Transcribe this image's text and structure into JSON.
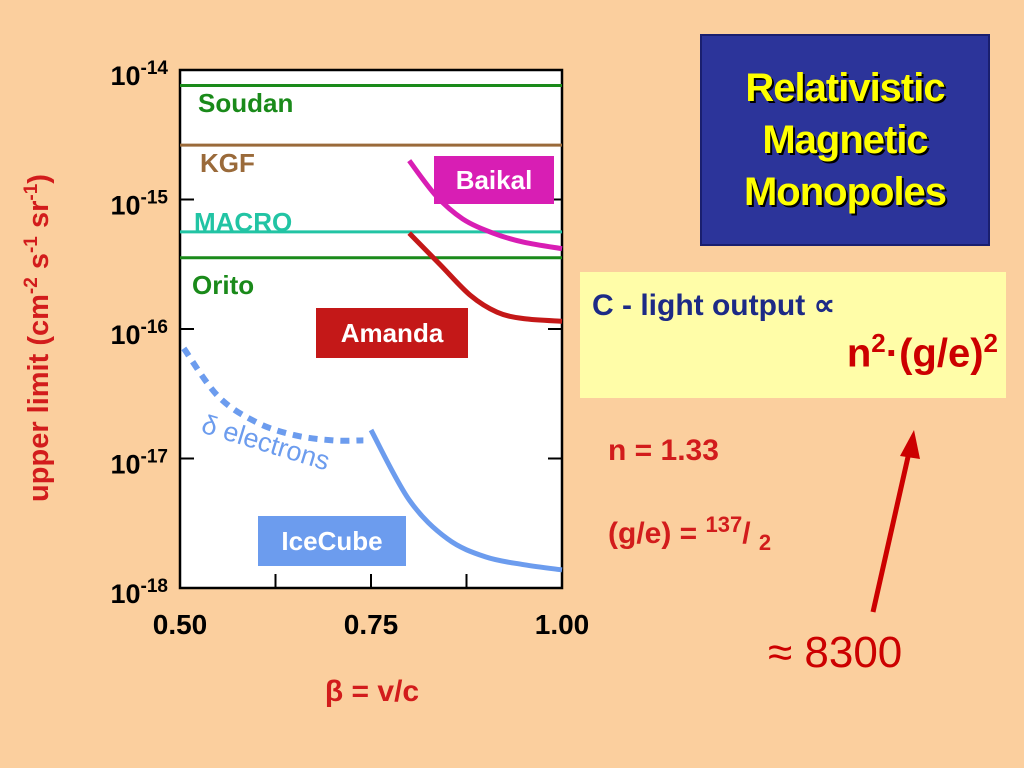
{
  "title": {
    "lines": [
      "Relativistic",
      "Magnetic",
      "Monopoles"
    ]
  },
  "formula": {
    "line1_text": "C - light output",
    "line1_symbol": "∝",
    "n_base": "n",
    "n_exp": "2",
    "dot": "·",
    "ratio": "(g/e)",
    "ratio_exp": "2"
  },
  "notes": {
    "n_value": "n = 1.33",
    "ge_prefix": "(g/e) = ",
    "ge_numerator": "137",
    "ge_slash": "/ ",
    "ge_denominator": "2",
    "approx_symbol": "≈",
    "approx_value": "8300"
  },
  "colors": {
    "soudan": "#1a8a1a",
    "kgf": "#9a6a3a",
    "macro": "#22c4a4",
    "orito": "#1a8a1a",
    "baikal": "#d81eb4",
    "amanda": "#c41818",
    "icecube": "#6c9cee",
    "delta": "#6c9cee",
    "axis_text": "#d21c1c",
    "arrow": "#cc0000"
  },
  "chart_data": {
    "type": "line",
    "xlabel": "β = v/c",
    "ylabel_base": "upper limit (cm",
    "ylabel_exp1": "-2",
    "ylabel_mid1": " s",
    "ylabel_exp2": "-1",
    "ylabel_mid2": " sr",
    "ylabel_exp3": "-1",
    "ylabel_end": ")",
    "xlim": [
      0.5,
      1.0
    ],
    "ylim_log10": [
      -18,
      -14
    ],
    "y_scale": "log",
    "x_ticks": [
      {
        "value": 0.5,
        "label": "0.50"
      },
      {
        "value": 0.75,
        "label": "0.75"
      },
      {
        "value": 1.0,
        "label": "1.00"
      }
    ],
    "x_minor_ticks": [
      0.625,
      0.875
    ],
    "y_ticks": [
      {
        "exp": -14,
        "base": "10",
        "sup": "-14"
      },
      {
        "exp": -15,
        "base": "10",
        "sup": "-15"
      },
      {
        "exp": -16,
        "base": "10",
        "sup": "-16"
      },
      {
        "exp": -17,
        "base": "10",
        "sup": "-17"
      },
      {
        "exp": -18,
        "base": "10",
        "sup": "-18"
      }
    ],
    "horizontal_limits": [
      {
        "name": "Soudan",
        "log10_value": -14.12,
        "color_key": "soudan"
      },
      {
        "name": "KGF",
        "log10_value": -14.58,
        "color_key": "kgf"
      },
      {
        "name": "MACRO",
        "log10_value": -15.25,
        "color_key": "macro"
      },
      {
        "name": "Orito",
        "log10_value": -15.45,
        "color_key": "orito"
      }
    ],
    "series": [
      {
        "name": "Baikal",
        "color_key": "baikal",
        "style": "solid",
        "x": [
          0.8,
          0.835,
          0.87,
          0.91,
          0.95,
          1.0
        ],
        "log10_y": [
          -14.7,
          -14.97,
          -15.15,
          -15.26,
          -15.33,
          -15.38
        ]
      },
      {
        "name": "Amanda",
        "color_key": "amanda",
        "style": "solid",
        "x": [
          0.8,
          0.84,
          0.88,
          0.915,
          0.95,
          1.0
        ],
        "log10_y": [
          -15.26,
          -15.5,
          -15.74,
          -15.87,
          -15.92,
          -15.94
        ]
      },
      {
        "name": "δ electrons",
        "color_key": "delta",
        "style": "dashed",
        "x": [
          0.505,
          0.55,
          0.6,
          0.65,
          0.7,
          0.74
        ],
        "log10_y": [
          -16.15,
          -16.52,
          -16.72,
          -16.82,
          -16.86,
          -16.86
        ]
      },
      {
        "name": "IceCube",
        "color_key": "icecube",
        "style": "solid",
        "x": [
          0.75,
          0.8,
          0.85,
          0.9,
          0.95,
          1.0
        ],
        "log10_y": [
          -16.78,
          -17.32,
          -17.62,
          -17.76,
          -17.82,
          -17.86
        ]
      }
    ]
  }
}
